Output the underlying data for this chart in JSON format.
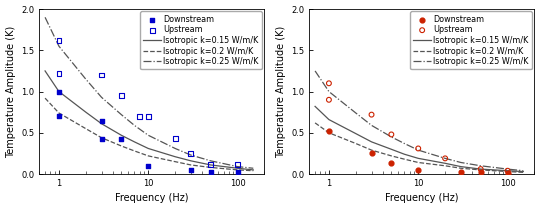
{
  "left": {
    "downstream_x": [
      1,
      1,
      3,
      3,
      5,
      10,
      30,
      50,
      100
    ],
    "downstream_y": [
      1.0,
      0.7,
      0.64,
      0.42,
      0.42,
      0.1,
      0.05,
      0.03,
      0.02
    ],
    "upstream_x": [
      1,
      1,
      3,
      5,
      8,
      10,
      20,
      30,
      50,
      100
    ],
    "upstream_y": [
      1.62,
      1.22,
      1.2,
      0.95,
      0.7,
      0.7,
      0.43,
      0.25,
      0.12,
      0.12
    ],
    "curve_k015_x": [
      0.7,
      1,
      2,
      3,
      5,
      7,
      10,
      20,
      30,
      50,
      100,
      150
    ],
    "curve_k015_y": [
      1.25,
      1.0,
      0.75,
      0.61,
      0.47,
      0.39,
      0.31,
      0.21,
      0.16,
      0.11,
      0.07,
      0.05
    ],
    "curve_k020_x": [
      0.7,
      1,
      2,
      3,
      5,
      7,
      10,
      20,
      30,
      50,
      100,
      150
    ],
    "curve_k020_y": [
      0.92,
      0.74,
      0.55,
      0.44,
      0.34,
      0.28,
      0.22,
      0.15,
      0.11,
      0.08,
      0.05,
      0.04
    ],
    "curve_k025_x": [
      0.7,
      1,
      2,
      3,
      5,
      7,
      10,
      20,
      30,
      50,
      100,
      150
    ],
    "curve_k025_y": [
      1.9,
      1.55,
      1.15,
      0.93,
      0.72,
      0.59,
      0.47,
      0.31,
      0.23,
      0.16,
      0.09,
      0.07
    ],
    "xlabel": "Frequency (Hz)",
    "ylabel": "Temperature Amplitude (K)",
    "ylim": [
      0,
      2.0
    ],
    "xlim": [
      0.6,
      200
    ]
  },
  "right": {
    "downstream_x": [
      1,
      3,
      5,
      10,
      30,
      50,
      100
    ],
    "downstream_y": [
      0.52,
      0.25,
      0.13,
      0.05,
      0.03,
      0.02,
      0.01
    ],
    "upstream_x": [
      1,
      1,
      3,
      5,
      10,
      20,
      50,
      100
    ],
    "upstream_y": [
      1.1,
      0.9,
      0.72,
      0.48,
      0.31,
      0.19,
      0.06,
      0.04
    ],
    "curve_k015_x": [
      0.7,
      1,
      2,
      3,
      5,
      7,
      10,
      20,
      30,
      50,
      100,
      150
    ],
    "curve_k015_y": [
      0.82,
      0.66,
      0.49,
      0.39,
      0.3,
      0.24,
      0.19,
      0.13,
      0.09,
      0.06,
      0.04,
      0.03
    ],
    "curve_k020_x": [
      0.7,
      1,
      2,
      3,
      5,
      7,
      10,
      20,
      30,
      50,
      100,
      150
    ],
    "curve_k020_y": [
      0.62,
      0.5,
      0.37,
      0.29,
      0.22,
      0.18,
      0.14,
      0.1,
      0.07,
      0.05,
      0.03,
      0.02
    ],
    "curve_k025_x": [
      0.7,
      1,
      2,
      3,
      5,
      7,
      10,
      20,
      30,
      50,
      100,
      150
    ],
    "curve_k025_y": [
      1.25,
      1.0,
      0.74,
      0.59,
      0.45,
      0.37,
      0.29,
      0.19,
      0.14,
      0.1,
      0.06,
      0.04
    ],
    "xlabel": "Frequency (Hz)",
    "ylabel": "Temperature Amplitude (K)",
    "ylim": [
      0,
      2.0
    ],
    "xlim": [
      0.6,
      200
    ]
  },
  "marker_color_left": "#0000CC",
  "marker_color_right": "#CC2200",
  "curve_color": "#555555",
  "legend_fontsize": 5.8,
  "axis_fontsize": 7,
  "tick_fontsize": 6
}
